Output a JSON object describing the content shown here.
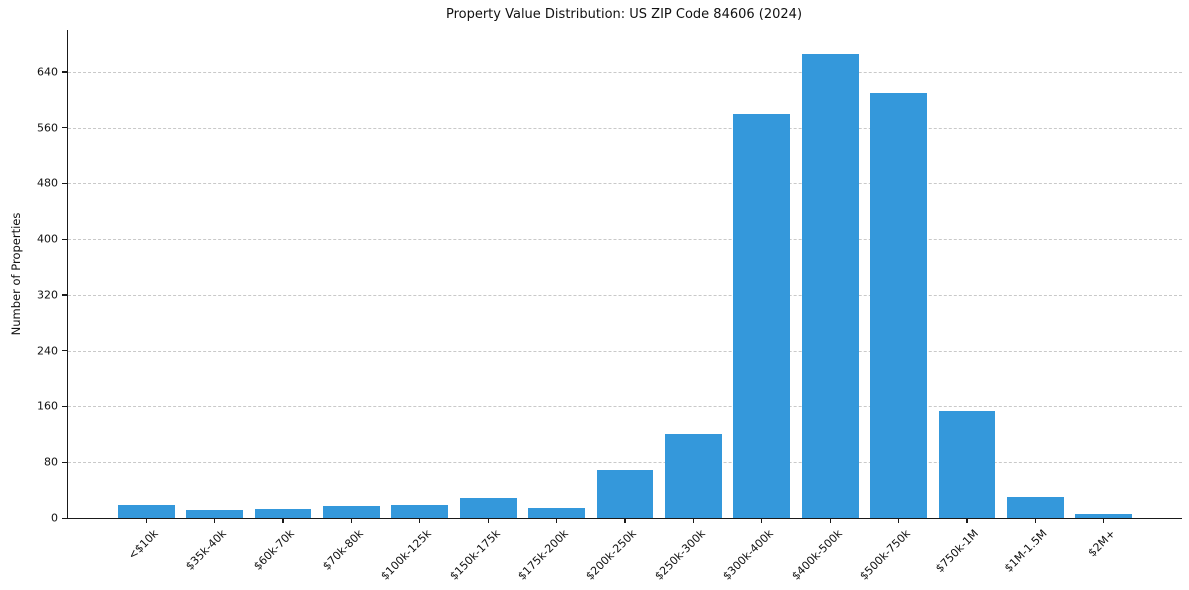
{
  "figure": {
    "background": "#ffffff",
    "text_color": "#111111"
  },
  "chart_data": {
    "type": "bar",
    "title": "Property Value Distribution: US ZIP Code 84606 (2024)",
    "xlabel": "",
    "ylabel": "Number of Properties",
    "categories": [
      "<$10k",
      "$35k-40k",
      "$60k-70k",
      "$70k-80k",
      "$100k-125k",
      "$150k-175k",
      "$175k-200k",
      "$200k-250k",
      "$250k-300k",
      "$300k-400k",
      "$400k-500k",
      "$500k-750k",
      "$750k-1M",
      "$1M-1.5M",
      "$2M+"
    ],
    "values": [
      19,
      11,
      13,
      17,
      19,
      28,
      15,
      69,
      120,
      580,
      665,
      610,
      153,
      30,
      6
    ],
    "yticks": [
      0,
      80,
      160,
      240,
      320,
      400,
      480,
      560,
      640
    ],
    "ylim": [
      0,
      700
    ],
    "bar_color": "#3498db",
    "grid": {
      "axis": "y",
      "style": "dashed",
      "color": "#c9c9c9"
    },
    "x_tick_rotation": 45,
    "legend": "none",
    "spines": [
      "left",
      "bottom"
    ]
  }
}
